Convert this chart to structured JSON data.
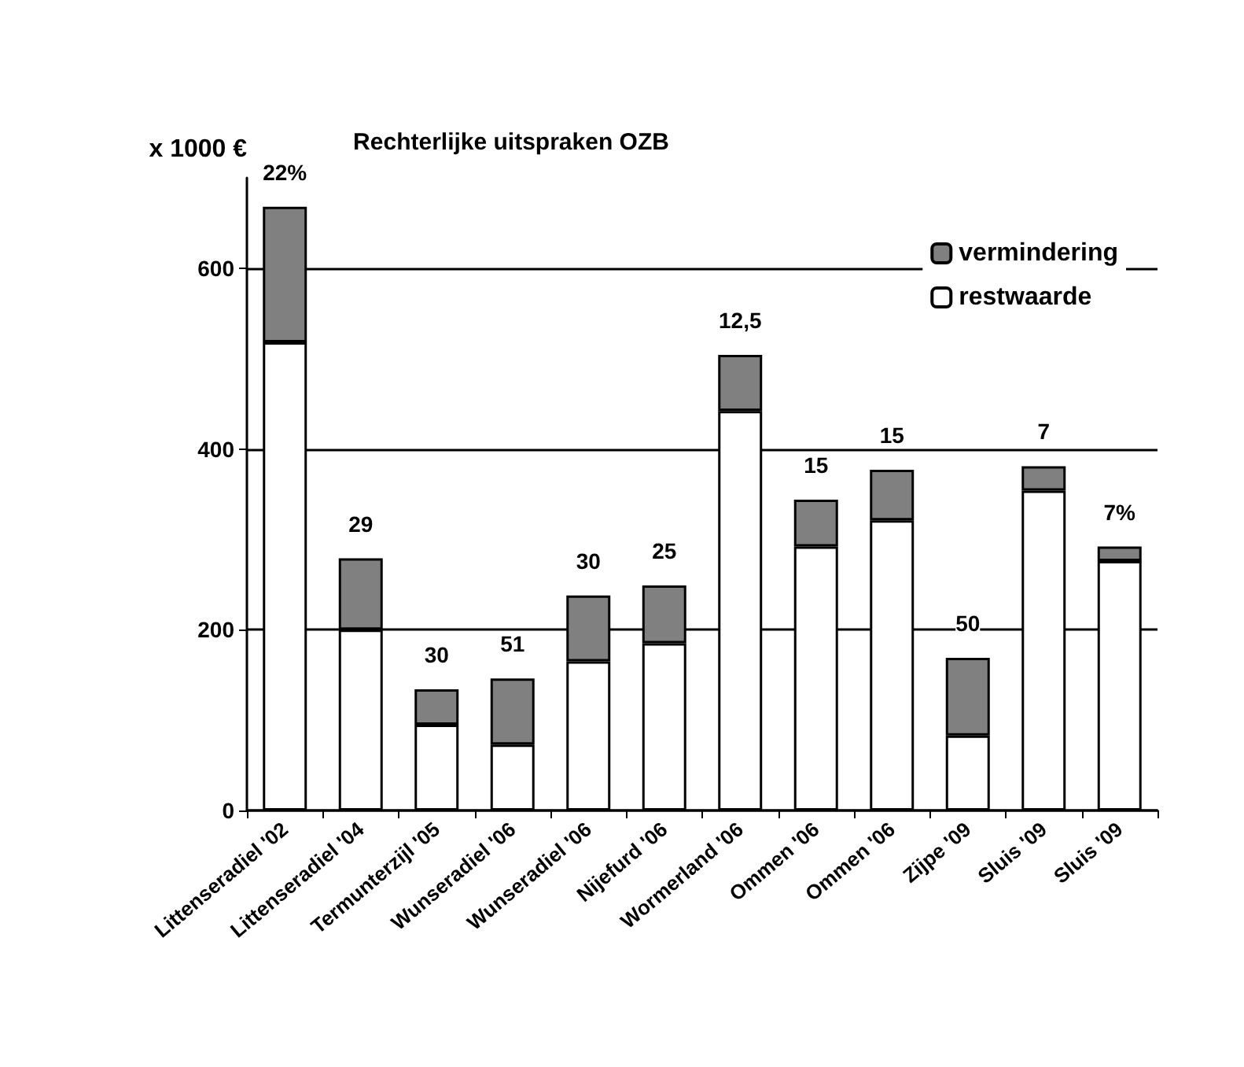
{
  "chart_data": {
    "type": "bar",
    "title": "Rechterlijke uitspraken OZB",
    "ylabel": "x 1000 €",
    "categories": [
      "Littenseradiel '02",
      "Littenseradiel '04",
      "Termunterzijl '05",
      "Wunseradiel '06",
      "Wunseradiel '06",
      "Nijefurd '06",
      "Wormerland '06",
      "Ommen '06",
      "Ommen '06",
      "Zijpe '09",
      "Sluis '09",
      "Sluis '09"
    ],
    "series": [
      {
        "name": "restwaarde",
        "color": "#ffffff",
        "values": [
          518,
          200,
          95,
          73,
          165,
          185,
          442,
          292,
          321,
          83,
          354,
          276
        ]
      },
      {
        "name": "vermindering",
        "color": "#808080",
        "values": [
          150,
          79,
          39,
          73,
          73,
          64,
          62,
          52,
          56,
          86,
          27,
          16
        ]
      }
    ],
    "stacked": true,
    "ylim": [
      0,
      700
    ],
    "yticks": [
      0,
      200,
      400,
      600
    ],
    "grid": "y",
    "legend": "top right",
    "annotations": [
      "22%",
      "29",
      "30",
      "51",
      "30",
      "25",
      "12,5",
      "15",
      "15",
      "50",
      "7",
      "7%"
    ]
  }
}
